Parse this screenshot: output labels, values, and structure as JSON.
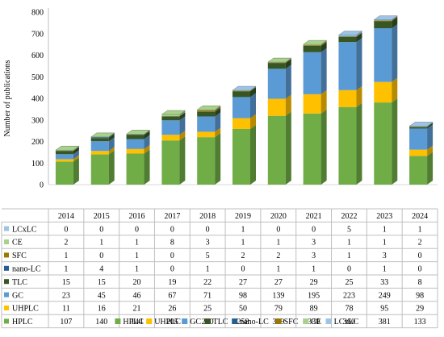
{
  "chart_data": {
    "type": "bar",
    "stacked": true,
    "three_d": true,
    "ylabel": "Number of publications",
    "xlabel": "",
    "ylim": [
      0,
      800
    ],
    "yticks": [
      0,
      100,
      200,
      300,
      400,
      500,
      600,
      700,
      800
    ],
    "grid": false,
    "legend_position": "bottom",
    "categories": [
      "2014",
      "2015",
      "2016",
      "2017",
      "2018",
      "2019",
      "2020",
      "2021",
      "2022",
      "2023",
      "2024"
    ],
    "series": [
      {
        "name": "HPLC",
        "color": "#70ad47",
        "values": [
          107,
          140,
          144,
          205,
          220,
          258,
          319,
          330,
          360,
          381,
          133
        ]
      },
      {
        "name": "UHPLC",
        "color": "#ffc000",
        "values": [
          11,
          16,
          21,
          26,
          25,
          50,
          79,
          89,
          78,
          95,
          29
        ]
      },
      {
        "name": "GC",
        "color": "#5b9bd5",
        "values": [
          23,
          45,
          46,
          67,
          71,
          98,
          139,
          195,
          223,
          249,
          98
        ]
      },
      {
        "name": "TLC",
        "color": "#375623",
        "values": [
          15,
          15,
          20,
          19,
          22,
          27,
          27,
          29,
          25,
          33,
          8
        ]
      },
      {
        "name": "nano-LC",
        "color": "#255e91",
        "values": [
          1,
          4,
          1,
          0,
          1,
          0,
          1,
          1,
          0,
          1,
          0
        ]
      },
      {
        "name": "SFC",
        "color": "#9c7800",
        "values": [
          1,
          0,
          1,
          0,
          5,
          2,
          2,
          3,
          1,
          3,
          0
        ]
      },
      {
        "name": "CE",
        "color": "#a9d18e",
        "values": [
          2,
          1,
          1,
          8,
          3,
          1,
          1,
          3,
          1,
          1,
          2
        ]
      },
      {
        "name": "LCxLC",
        "color": "#9dc3e6",
        "values": [
          0,
          0,
          0,
          0,
          0,
          1,
          0,
          0,
          5,
          1,
          1
        ]
      }
    ],
    "table_row_order": [
      "LCxLC",
      "CE",
      "SFC",
      "nano-LC",
      "TLC",
      "GC",
      "UHPLC",
      "HPLC"
    ]
  }
}
